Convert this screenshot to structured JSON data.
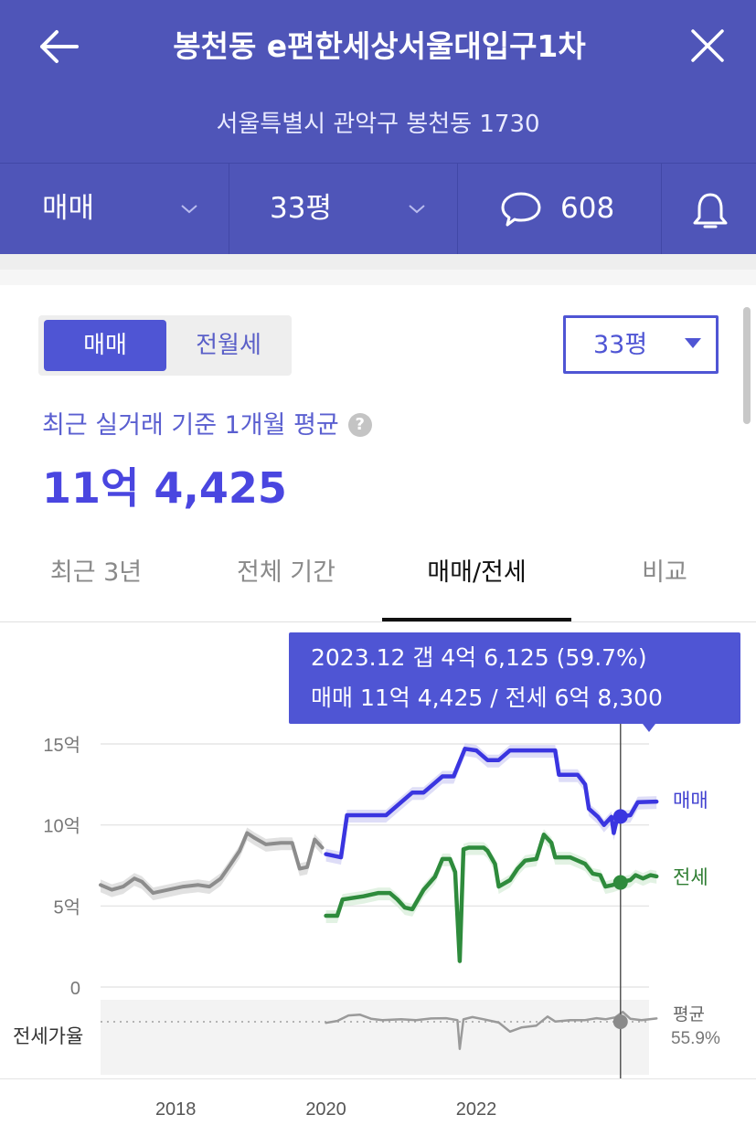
{
  "header": {
    "title": "봉천동 e편한세상서울대입구1차",
    "address": "서울특별시 관악구 봉천동 1730",
    "toolbar": {
      "trade_type": "매매",
      "area": "33평",
      "comment_count": "608"
    }
  },
  "filters": {
    "segments": [
      "매매",
      "전월세"
    ],
    "area_select": "33평"
  },
  "summary": {
    "subtitle": "최근 실거래 기준 1개월 평균",
    "help": "?",
    "price": "11억 4,425"
  },
  "tabs": [
    "최근 3년",
    "전체 기간",
    "매매/전세",
    "비교"
  ],
  "tooltip": {
    "line1": "2023.12  갭 4억 6,125 (59.7%)",
    "line2": "매매 11억 4,425 / 전세 6억 8,300"
  },
  "colors": {
    "header": "#4f55b8",
    "accent": "#4f55d4",
    "sale_line": "#3a35e0",
    "jeonse_line": "#2e8b3c",
    "history_line": "#8c8c8c"
  },
  "chart_data": {
    "type": "line",
    "y_unit": "억",
    "yticks": [
      {
        "value": 15,
        "label": "15억"
      },
      {
        "value": 10,
        "label": "10억"
      },
      {
        "value": 5,
        "label": "5억"
      },
      {
        "value": 0,
        "label": "0"
      }
    ],
    "ylim": [
      0,
      15
    ],
    "xlim": [
      2017.0,
      2024.3
    ],
    "xticks": [
      {
        "value": 2018,
        "label": "2018"
      },
      {
        "value": 2020,
        "label": "2020"
      },
      {
        "value": 2022,
        "label": "2022"
      }
    ],
    "ratio_label": "전세가율",
    "ratio_avg_label": "평균",
    "ratio_avg_value": "55.9%",
    "cursor_x": 2023.92,
    "series": [
      {
        "key": "history",
        "points": [
          [
            2017.0,
            6.3
          ],
          [
            2017.15,
            6.0
          ],
          [
            2017.3,
            6.2
          ],
          [
            2017.45,
            6.7
          ],
          [
            2017.55,
            6.5
          ],
          [
            2017.7,
            5.8
          ],
          [
            2017.9,
            6.0
          ],
          [
            2018.1,
            6.2
          ],
          [
            2018.3,
            6.3
          ],
          [
            2018.45,
            6.2
          ],
          [
            2018.6,
            6.7
          ],
          [
            2018.72,
            7.5
          ],
          [
            2018.85,
            8.4
          ],
          [
            2018.95,
            9.5
          ],
          [
            2019.05,
            9.2
          ],
          [
            2019.2,
            8.8
          ],
          [
            2019.4,
            8.9
          ],
          [
            2019.55,
            8.9
          ],
          [
            2019.65,
            7.3
          ],
          [
            2019.75,
            7.4
          ],
          [
            2019.85,
            9.1
          ],
          [
            2019.95,
            8.6
          ]
        ]
      },
      {
        "key": "sale",
        "name": "매매",
        "points": [
          [
            2020.0,
            8.2
          ],
          [
            2020.2,
            8.0
          ],
          [
            2020.28,
            10.6
          ],
          [
            2020.5,
            10.6
          ],
          [
            2020.7,
            10.6
          ],
          [
            2020.8,
            10.6
          ],
          [
            2021.15,
            12.0
          ],
          [
            2021.3,
            12.0
          ],
          [
            2021.45,
            12.6
          ],
          [
            2021.55,
            13.0
          ],
          [
            2021.7,
            13.0
          ],
          [
            2021.85,
            14.7
          ],
          [
            2022.0,
            14.6
          ],
          [
            2022.15,
            14.0
          ],
          [
            2022.3,
            14.0
          ],
          [
            2022.45,
            14.6
          ],
          [
            2022.75,
            14.6
          ],
          [
            2023.05,
            14.6
          ],
          [
            2023.1,
            13.1
          ],
          [
            2023.35,
            13.1
          ],
          [
            2023.45,
            12.5
          ],
          [
            2023.5,
            11.0
          ],
          [
            2023.62,
            10.5
          ],
          [
            2023.7,
            10.0
          ],
          [
            2023.8,
            10.5
          ],
          [
            2023.83,
            9.5
          ],
          [
            2023.88,
            10.5
          ],
          [
            2024.05,
            10.6
          ],
          [
            2024.15,
            11.4
          ],
          [
            2024.4,
            11.44
          ]
        ]
      },
      {
        "key": "jeonse",
        "name": "전세",
        "points": [
          [
            2020.0,
            4.4
          ],
          [
            2020.15,
            4.4
          ],
          [
            2020.22,
            5.4
          ],
          [
            2020.5,
            5.6
          ],
          [
            2020.7,
            5.8
          ],
          [
            2020.85,
            5.8
          ],
          [
            2020.95,
            5.4
          ],
          [
            2021.05,
            4.9
          ],
          [
            2021.15,
            4.8
          ],
          [
            2021.3,
            6.0
          ],
          [
            2021.45,
            6.8
          ],
          [
            2021.55,
            7.9
          ],
          [
            2021.65,
            7.9
          ],
          [
            2021.72,
            7.1
          ],
          [
            2021.78,
            1.6
          ],
          [
            2021.83,
            8.5
          ],
          [
            2021.9,
            8.6
          ],
          [
            2022.1,
            8.6
          ],
          [
            2022.15,
            8.4
          ],
          [
            2022.25,
            7.6
          ],
          [
            2022.3,
            6.2
          ],
          [
            2022.45,
            6.6
          ],
          [
            2022.55,
            7.3
          ],
          [
            2022.65,
            7.8
          ],
          [
            2022.8,
            7.9
          ],
          [
            2022.9,
            9.4
          ],
          [
            2023.0,
            8.9
          ],
          [
            2023.05,
            8.0
          ],
          [
            2023.25,
            8.0
          ],
          [
            2023.45,
            7.6
          ],
          [
            2023.55,
            7.0
          ],
          [
            2023.65,
            6.9
          ],
          [
            2023.72,
            6.2
          ],
          [
            2023.82,
            6.3
          ],
          [
            2023.95,
            6.5
          ],
          [
            2024.05,
            6.6
          ],
          [
            2024.12,
            6.9
          ],
          [
            2024.22,
            6.7
          ],
          [
            2024.32,
            6.9
          ],
          [
            2024.4,
            6.83
          ]
        ]
      },
      {
        "key": "ratio",
        "points": [
          [
            2020.0,
            55.5
          ],
          [
            2020.15,
            56.2
          ],
          [
            2020.3,
            58.2
          ],
          [
            2020.45,
            58.5
          ],
          [
            2020.6,
            57.0
          ],
          [
            2020.75,
            56.5
          ],
          [
            2021.0,
            56.8
          ],
          [
            2021.2,
            56.5
          ],
          [
            2021.4,
            57.1
          ],
          [
            2021.6,
            57.2
          ],
          [
            2021.75,
            56.5
          ],
          [
            2021.78,
            46.0
          ],
          [
            2021.83,
            56.8
          ],
          [
            2021.95,
            57.6
          ],
          [
            2022.1,
            56.8
          ],
          [
            2022.3,
            55.6
          ],
          [
            2022.45,
            52.3
          ],
          [
            2022.6,
            53.8
          ],
          [
            2022.8,
            54.5
          ],
          [
            2022.95,
            57.8
          ],
          [
            2023.05,
            56.0
          ],
          [
            2023.25,
            56.5
          ],
          [
            2023.45,
            56.5
          ],
          [
            2023.6,
            57.2
          ],
          [
            2023.72,
            56.8
          ],
          [
            2023.85,
            57.5
          ],
          [
            2023.95,
            59.5
          ],
          [
            2024.05,
            57.0
          ],
          [
            2024.2,
            56.5
          ],
          [
            2024.4,
            57.1
          ]
        ]
      }
    ]
  }
}
